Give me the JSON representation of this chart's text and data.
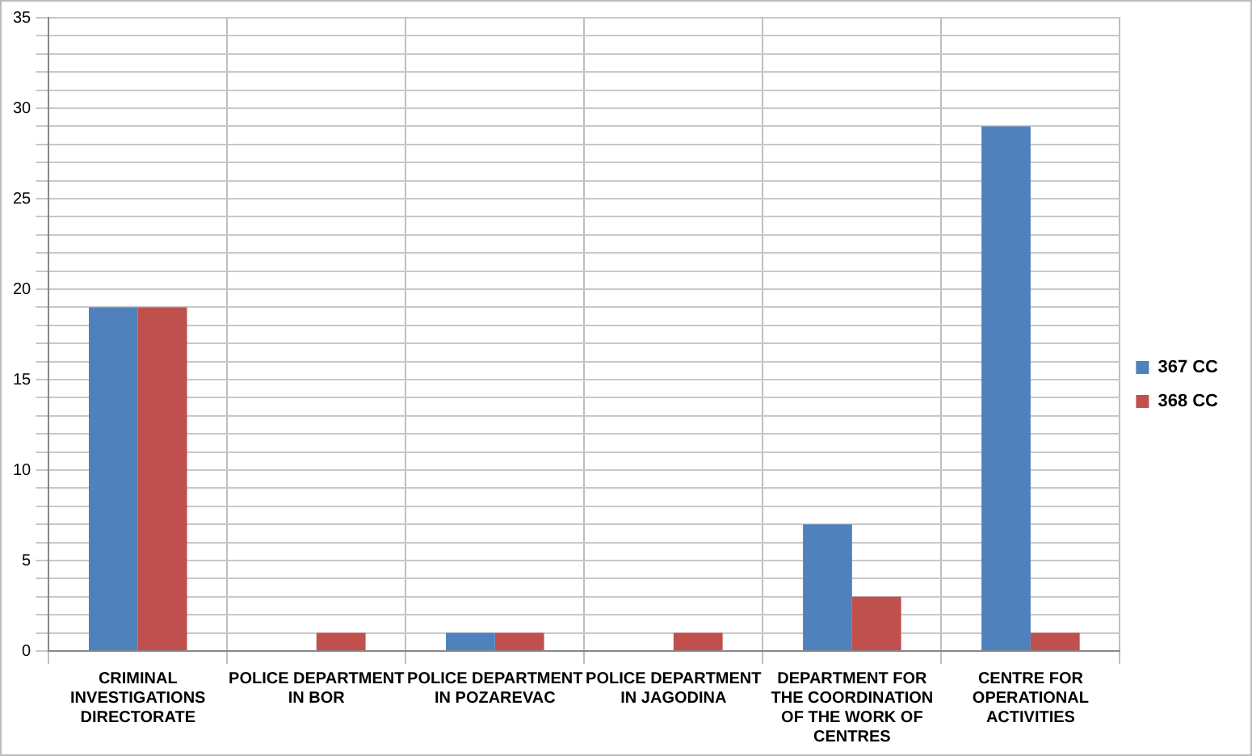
{
  "chart_data": {
    "type": "bar",
    "categories": [
      "CRIMINAL INVESTIGATIONS DIRECTORATE",
      "POLICE DEPARTMENT IN BOR",
      "POLICE DEPARTMENT IN POZAREVAC",
      "POLICE DEPARTMENT IN JAGODINA",
      "DEPARTMENT FOR THE COORDINATION OF THE WORK OF CENTRES",
      "CENTRE FOR OPERATIONAL ACTIVITIES"
    ],
    "series": [
      {
        "name": "367 CC",
        "color": "#4f81bd",
        "values": [
          19,
          0,
          1,
          0,
          7,
          29
        ]
      },
      {
        "name": "368 CC",
        "color": "#c0504d",
        "values": [
          19,
          1,
          1,
          1,
          3,
          1
        ]
      }
    ],
    "ylim": [
      0,
      35
    ],
    "yticks": [
      0,
      {
        "value": 1,
        "label": null
      },
      {
        "value": 2,
        "label": null
      },
      {
        "value": 3,
        "label": null
      },
      {
        "value": 4,
        "label": null
      },
      5,
      {
        "value": 6,
        "label": null
      },
      {
        "value": 7,
        "label": null
      },
      {
        "value": 8,
        "label": null
      },
      {
        "value": 9,
        "label": null
      },
      10,
      {
        "value": 11,
        "label": null
      },
      {
        "value": 12,
        "label": null
      },
      {
        "value": 13,
        "label": null
      },
      {
        "value": 14,
        "label": null
      },
      15,
      {
        "value": 16,
        "label": null
      },
      {
        "value": 17,
        "label": null
      },
      {
        "value": 18,
        "label": null
      },
      {
        "value": 19,
        "label": null
      },
      20,
      {
        "value": 21,
        "label": null
      },
      {
        "value": 22,
        "label": null
      },
      {
        "value": 23,
        "label": null
      },
      {
        "value": 24,
        "label": null
      },
      25,
      {
        "value": 26,
        "label": null
      },
      {
        "value": 27,
        "label": null
      },
      {
        "value": 28,
        "label": null
      },
      {
        "value": 29,
        "label": null
      },
      30,
      {
        "value": 31,
        "label": null
      },
      {
        "value": 32,
        "label": null
      },
      {
        "value": 33,
        "label": null
      },
      {
        "value": 34,
        "label": null
      },
      35
    ],
    "grid": true,
    "legend": "right"
  }
}
